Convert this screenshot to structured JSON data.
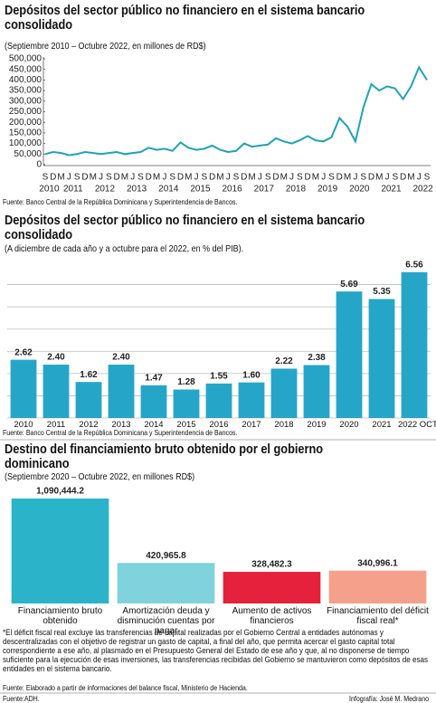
{
  "chart_data": [
    {
      "type": "line",
      "title": "Depósitos del sector público no financiero  en el sistema bancario consolidado",
      "subtitle": "(Septiembre 2010 – Octubre 2022, en millones de RD$)",
      "source": "Fuente: Banco Central de la República Dominicana y Superintendencia de Bancos.",
      "categories": [
        "S",
        "D",
        "M",
        "J",
        "S",
        "D",
        "M",
        "J",
        "S",
        "D",
        "M",
        "J",
        "S",
        "D",
        "M",
        "J",
        "S",
        "D",
        "M",
        "J",
        "S",
        "D",
        "M",
        "J",
        "S",
        "D",
        "M",
        "J",
        "S",
        "D",
        "M",
        "J",
        "S",
        "D",
        "M",
        "J",
        "S",
        "D",
        "M",
        "J",
        "S",
        "D",
        "M",
        "J",
        "S",
        "D",
        "M",
        "J",
        "S"
      ],
      "x_group_labels": [
        "2010",
        "2011",
        "2012",
        "2013",
        "2014",
        "2015",
        "2016",
        "2017",
        "2018",
        "2019",
        "2020",
        "2021",
        "2022"
      ],
      "values": [
        50000,
        60000,
        55000,
        45000,
        50000,
        60000,
        55000,
        50000,
        55000,
        60000,
        50000,
        55000,
        60000,
        80000,
        70000,
        75000,
        65000,
        105000,
        80000,
        70000,
        75000,
        90000,
        70000,
        60000,
        65000,
        100000,
        85000,
        90000,
        95000,
        125000,
        110000,
        100000,
        115000,
        135000,
        115000,
        110000,
        130000,
        220000,
        180000,
        110000,
        270000,
        380000,
        350000,
        370000,
        360000,
        310000,
        370000,
        460000,
        400000
      ],
      "color": "#1ea3b3",
      "ylim": [
        0,
        500000
      ],
      "yticks": [
        0,
        {
          "value": 50000,
          "label": "50,000"
        },
        {
          "value": 100000,
          "label": "100,000"
        },
        {
          "value": 150000,
          "label": "150,000"
        },
        {
          "value": 200000,
          "label": "200,000"
        },
        {
          "value": 250000,
          "label": "250,000"
        },
        {
          "value": 300000,
          "label": "300,000"
        },
        {
          "value": 350000,
          "label": "350,000"
        },
        {
          "value": 400000,
          "label": "400,000"
        },
        {
          "value": 450000,
          "label": "450,000"
        },
        {
          "value": 500000,
          "label": "500,000"
        }
      ],
      "grid": false
    },
    {
      "type": "bar",
      "title": "Depósitos del sector público no financiero  en el sistema bancario consolidado",
      "subtitle": "(A diciembre de cada año y a octubre para el 2022, en % del PIB).",
      "source": "Fuente: Banco Central de la República Dominicana y Superintendencia de Bancos.",
      "categories": [
        "2010",
        "2011",
        "2012",
        "2013",
        "2014",
        "2015",
        "2016",
        "2017",
        "2018",
        "2019",
        "2020",
        "2021",
        "2022 OCT"
      ],
      "values": [
        2.62,
        2.4,
        1.62,
        2.4,
        1.47,
        1.28,
        1.55,
        1.6,
        2.22,
        2.38,
        5.69,
        5.35,
        6.56
      ],
      "value_labels": [
        "2.62",
        "2.40",
        "1.62",
        "2.40",
        "1.47",
        "1.28",
        "1.55",
        "1.60",
        "2.22",
        "2.38",
        "5.69",
        "5.35",
        "6.56"
      ],
      "color": "#25a6c8",
      "ylim": [
        0,
        7
      ],
      "yticks": [
        0,
        1,
        2,
        3,
        4,
        5,
        6
      ],
      "show_ytick_labels": false,
      "grid": true
    },
    {
      "type": "bar",
      "title": "Destino del financiamiento bruto obtenido por el gobierno dominicano",
      "subtitle": "(Septiembre 2020 – Octubre 2022, en millones RD$)",
      "categories": [
        "Financiamiento bruto obtenido",
        "Amortización deuda y disminución cuentas por pagar",
        "Aumento de activos financieros",
        "Financiamiento del déficit fiscal real*"
      ],
      "values": [
        1090444.2,
        420965.8,
        328482.3,
        340996.1
      ],
      "value_labels": [
        "1,090,444.2",
        "420,965.8",
        "328,482.3",
        "340,996.1"
      ],
      "colors": [
        "#2bb4c9",
        "#80d2dc",
        "#e5213b",
        "#f4a08a"
      ],
      "ylim": [
        0,
        1100000
      ],
      "grid": false
    }
  ],
  "footnote": "*El déficit fiscal real excluye las transferencias de capital realizadas por el Gobierno Central a entidades autónomas y descentralizadas con el objetivo de registrar un gasto de capital, a final del año,  que permita acercar el gasto capital total correspondiente a ese año, al plasmado en el Presupuesto General del Estado de ese año y que, al no disponerse de tiempo suficiente para la ejecución de esas inversiones, las transferencias recibidas del Gobierno se mantuvieron como depósitos de esas entidades en el sistema bancario.",
  "footnote_source": "Fuente: Elaborado a partir de informaciones del balance fiscal, Ministerio de Hacienda.",
  "footer": {
    "source": "Fuente:ADH.",
    "credit": "Infografía: José M. Medrano"
  }
}
